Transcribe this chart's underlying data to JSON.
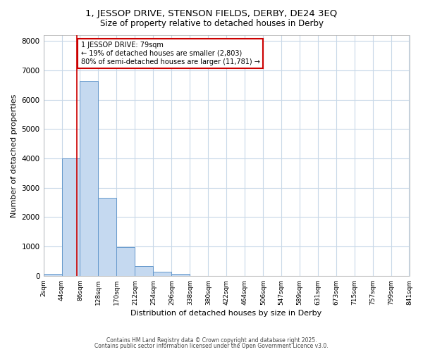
{
  "title_line1": "1, JESSOP DRIVE, STENSON FIELDS, DERBY, DE24 3EQ",
  "title_line2": "Size of property relative to detached houses in Derby",
  "xlabel": "Distribution of detached houses by size in Derby",
  "ylabel": "Number of detached properties",
  "bar_edges": [
    2,
    44,
    86,
    128,
    170,
    212,
    254,
    296,
    338,
    380,
    422,
    464,
    506,
    547,
    589,
    631,
    673,
    715,
    757,
    799,
    841
  ],
  "bar_heights": [
    75,
    4010,
    6640,
    2660,
    980,
    330,
    130,
    60,
    0,
    0,
    0,
    0,
    0,
    0,
    0,
    0,
    0,
    0,
    0,
    0
  ],
  "bar_color": "#c5d9f0",
  "bar_edge_color": "#6699cc",
  "bar_edge_width": 0.7,
  "property_line_x": 79,
  "property_line_color": "#cc0000",
  "annotation_text": "1 JESSOP DRIVE: 79sqm\n← 19% of detached houses are smaller (2,803)\n80% of semi-detached houses are larger (11,781) →",
  "annotation_box_facecolor": "#ffffff",
  "annotation_box_edgecolor": "#cc0000",
  "ylim": [
    0,
    8200
  ],
  "yticks": [
    0,
    1000,
    2000,
    3000,
    4000,
    5000,
    6000,
    7000,
    8000
  ],
  "fig_background": "#ffffff",
  "plot_background": "#ffffff",
  "grid_color": "#c8d8e8",
  "footer_line1": "Contains HM Land Registry data © Crown copyright and database right 2025.",
  "footer_line2": "Contains public sector information licensed under the Open Government Licence v3.0."
}
